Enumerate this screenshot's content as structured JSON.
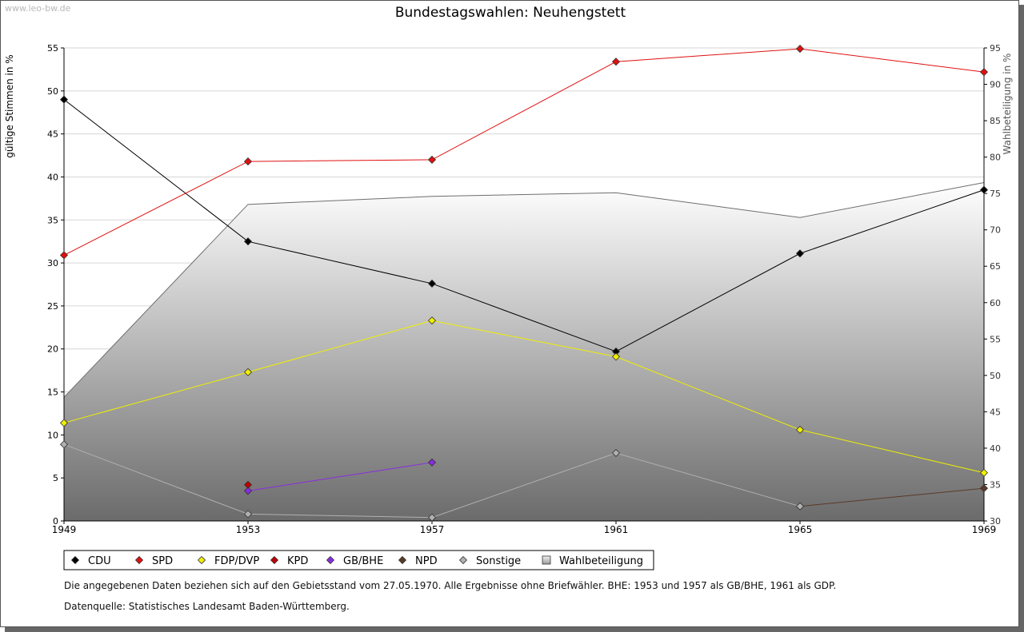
{
  "watermark": "www.leo-bw.de",
  "chart_data": {
    "type": "line",
    "title": "Bundestagswahlen: Neuhengstett",
    "ylabel": "gültige Stimmen in %",
    "y2label": "Wahlbeteiligung in %",
    "xlabel": "",
    "categories": [
      "1949",
      "1953",
      "1957",
      "1961",
      "1965",
      "1969"
    ],
    "ylim": [
      0,
      55
    ],
    "yticks": [
      0,
      5,
      10,
      15,
      20,
      25,
      30,
      35,
      40,
      45,
      50,
      55
    ],
    "y2lim": [
      30,
      95
    ],
    "y2ticks": [
      30,
      35,
      40,
      45,
      50,
      55,
      60,
      65,
      70,
      75,
      80,
      85,
      90,
      95
    ],
    "grid": true,
    "series": [
      {
        "name": "CDU",
        "color": "#000000",
        "values": [
          49.0,
          32.5,
          27.6,
          19.7,
          31.1,
          38.5
        ]
      },
      {
        "name": "SPD",
        "color": "#e01010",
        "values": [
          30.9,
          41.8,
          42.0,
          53.4,
          54.9,
          52.2
        ]
      },
      {
        "name": "FDP/DVP",
        "color": "#f0f000",
        "values": [
          11.4,
          17.3,
          23.3,
          19.1,
          10.6,
          5.6
        ]
      },
      {
        "name": "KPD",
        "color": "#c00000",
        "values": [
          null,
          4.2,
          null,
          null,
          null,
          null
        ]
      },
      {
        "name": "GB/BHE",
        "color": "#8a2be2",
        "values": [
          null,
          3.5,
          6.8,
          null,
          null,
          null
        ]
      },
      {
        "name": "NPD",
        "color": "#5a3a28",
        "values": [
          null,
          null,
          null,
          null,
          1.7,
          3.8
        ]
      },
      {
        "name": "Sonstige",
        "color": "#b0b0b0",
        "values": [
          8.9,
          0.8,
          0.4,
          7.9,
          1.7,
          null
        ]
      }
    ],
    "turnout": {
      "name": "Wahlbeteiligung",
      "axis": "right",
      "values": [
        47.0,
        73.5,
        74.6,
        75.1,
        71.7,
        76.5
      ]
    },
    "legend_position": "bottom"
  },
  "notes": {
    "line1": "Die angegebenen Daten beziehen sich auf den Gebietsstand vom 27.05.1970. Alle Ergebnisse ohne Briefwähler. BHE: 1953 und 1957 als GB/BHE, 1961 als GDP.",
    "line2": "Datenquelle: Statistisches Landesamt Baden-Württemberg."
  }
}
